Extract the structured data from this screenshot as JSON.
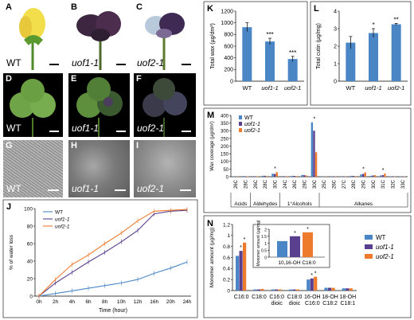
{
  "photo_panels": {
    "A": {
      "letter": "A",
      "label": "WT"
    },
    "B": {
      "letter": "B",
      "label": "uof1-1"
    },
    "C": {
      "letter": "C",
      "label": "uof2-1"
    },
    "D": {
      "letter": "D",
      "label": "WT"
    },
    "E": {
      "letter": "E",
      "label": "uof1-1"
    },
    "F": {
      "letter": "F",
      "label": "uof2-1"
    },
    "G": {
      "letter": "G",
      "label": "WT"
    },
    "H": {
      "letter": "H",
      "label": "uof1-1"
    },
    "I": {
      "letter": "I",
      "label": "uof2-1"
    }
  },
  "colors": {
    "wt": "#4a86c6",
    "uof1": "#5a3f8f",
    "uof2": "#ee7b2d"
  },
  "chart_data": [
    {
      "panel": "J",
      "type": "line",
      "x": [
        "0h",
        "2h",
        "4h",
        "6h",
        "8h",
        "10h",
        "12h",
        "16h",
        "20h",
        "24h"
      ],
      "ylabel": "% of water loss",
      "xlabel": "Time (hour)",
      "ylim": [
        0,
        100
      ],
      "yticks": [
        "0",
        "20",
        "40",
        "60",
        "80",
        "100"
      ],
      "legend": [
        "WT",
        "uof1-1",
        "uof2-1"
      ],
      "series": [
        {
          "name": "WT",
          "values": [
            0,
            3,
            6,
            9,
            12,
            15,
            19,
            26,
            32,
            39
          ]
        },
        {
          "name": "uof1-1",
          "values": [
            0,
            15,
            27,
            39,
            50,
            62,
            75,
            94,
            97,
            98
          ]
        },
        {
          "name": "uof2-1",
          "values": [
            0,
            19,
            36,
            47,
            60,
            72,
            86,
            97,
            98,
            99
          ]
        }
      ]
    },
    {
      "panel": "K",
      "type": "bar",
      "categories": [
        "WT",
        "uof1-1",
        "uof2-1"
      ],
      "values": [
        925,
        680,
        380
      ],
      "errors": [
        75,
        55,
        45
      ],
      "sig": [
        "",
        "***",
        "***"
      ],
      "ylabel": "Total wax (µg/dm²)",
      "ylim": [
        0,
        1200
      ],
      "yticks": [
        "0",
        "200",
        "400",
        "600",
        "800",
        "1000",
        "1200"
      ]
    },
    {
      "panel": "L",
      "type": "bar",
      "categories": [
        "WT",
        "uof1-1",
        "uof2-1"
      ],
      "values": [
        2.2,
        2.75,
        3.25
      ],
      "errors": [
        0.35,
        0.25,
        0.05
      ],
      "sig": [
        "",
        "*",
        "**"
      ],
      "ylabel": "Total cutin (µg/mg)",
      "ylim": [
        0,
        4
      ],
      "yticks": [
        "0",
        "1",
        "2",
        "3",
        "4"
      ]
    },
    {
      "panel": "M",
      "type": "bar",
      "categories": [
        "26C",
        "28C",
        "26C",
        "28C",
        "30C",
        "24C",
        "26C",
        "28C",
        "30C",
        "25C",
        "26C",
        "27C",
        "28C",
        "29C",
        "30C",
        "31C",
        "32C",
        "33C"
      ],
      "groups": [
        {
          "label": "Acids",
          "count": 2
        },
        {
          "label": "Aldehydes",
          "count": 3
        },
        {
          "label": "1°Alcohols",
          "count": 4
        },
        {
          "label": "Alkanes",
          "count": 9
        }
      ],
      "series": [
        {
          "name": "WT",
          "values": [
            3,
            4,
            4,
            6,
            20,
            4,
            6,
            12,
            355,
            3,
            3,
            3,
            6,
            15,
            6,
            8,
            3,
            2
          ]
        },
        {
          "name": "uof1-1",
          "values": [
            2,
            3,
            3,
            6,
            18,
            3,
            5,
            10,
            300,
            2,
            3,
            3,
            5,
            18,
            8,
            10,
            3,
            2
          ]
        },
        {
          "name": "uof2-1",
          "values": [
            2,
            3,
            3,
            4,
            30,
            3,
            4,
            8,
            160,
            2,
            2,
            2,
            4,
            28,
            10,
            20,
            2,
            2
          ]
        }
      ],
      "sig_index": [
        4,
        8,
        13,
        15
      ],
      "ylabel": "Wax coverage (µg/dm²)",
      "ylim": [
        0,
        400
      ],
      "yticks": [
        "0",
        "50",
        "100",
        "150",
        "200",
        "250",
        "300",
        "350",
        "400"
      ],
      "legend": [
        "WT",
        "uof1-1",
        "uof2-1"
      ]
    },
    {
      "panel": "N",
      "type": "bar",
      "categories": [
        "C16:0",
        "C18:0",
        "C16:0 dioic",
        "C18:0 dioic",
        "16-OH C16:0",
        "18-OH C18:2",
        "18-OH C18:1"
      ],
      "series": [
        {
          "name": "WT",
          "values": [
            0.63,
            0.02,
            0.02,
            0.02,
            0.2,
            0.05,
            0.04
          ]
        },
        {
          "name": "uof1-1",
          "values": [
            0.72,
            0.02,
            0.02,
            0.02,
            0.22,
            0.05,
            0.04
          ]
        },
        {
          "name": "uof2-1",
          "values": [
            0.87,
            0.03,
            0.02,
            0.02,
            0.25,
            0.05,
            0.04
          ]
        }
      ],
      "sig_index": [
        0,
        4
      ],
      "ylabel": "Monomer amount (µg/mg)",
      "ylim": [
        0,
        1.2
      ],
      "yticks": [
        "0",
        "0.2",
        "0.4",
        "0.6",
        "0.8",
        "1",
        "1.2"
      ],
      "legend": [
        "WT",
        "uof1-1",
        "uof2-1"
      ],
      "inset": {
        "xlabel": "10,16-OH C16:0",
        "ylabel": "Monomer amount (µg/mg)",
        "values": [
          1.15,
          1.5,
          1.78
        ],
        "ylim": [
          0,
          2
        ],
        "yticks": [
          "0",
          "0.5",
          "1",
          "1.5",
          "2"
        ],
        "sig": [
          "",
          "*",
          "*"
        ]
      }
    }
  ]
}
